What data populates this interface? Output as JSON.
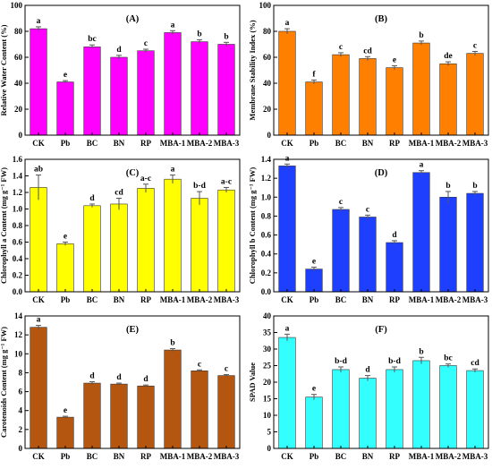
{
  "chart_data": [
    {
      "type": "bar",
      "panel_label": "(A)",
      "color": "#ff00ff",
      "ylabel": "Relative Water Content (%)",
      "ylim": [
        0,
        100
      ],
      "yticks": [
        0,
        20,
        40,
        60,
        80,
        100
      ],
      "categories": [
        "CK",
        "Pb",
        "BC",
        "BN",
        "RP",
        "MBA-1",
        "MBA-2",
        "MBA-3"
      ],
      "values": [
        82,
        41,
        68,
        60,
        65,
        79,
        72,
        70
      ],
      "errors": [
        1.5,
        1.0,
        1.5,
        1.5,
        1.2,
        1.5,
        1.5,
        1.5
      ],
      "significance": [
        "a",
        "e",
        "bc",
        "d",
        "c",
        "a",
        "b",
        "b"
      ]
    },
    {
      "type": "bar",
      "panel_label": "(B)",
      "color": "#ff8000",
      "ylabel": "Membrane Stability Index (%)",
      "ylim": [
        0,
        100
      ],
      "yticks": [
        0,
        20,
        40,
        60,
        80,
        100
      ],
      "categories": [
        "CK",
        "Pb",
        "BC",
        "BN",
        "RP",
        "MBA-1",
        "MBA-2",
        "MBA-3"
      ],
      "values": [
        80,
        41,
        62,
        59,
        52,
        71,
        55,
        63
      ],
      "errors": [
        2.0,
        1.5,
        1.5,
        1.5,
        1.5,
        1.5,
        1.5,
        1.5
      ],
      "significance": [
        "a",
        "f",
        "c",
        "cd",
        "e",
        "b",
        "de",
        "c"
      ]
    },
    {
      "type": "bar",
      "panel_label": "(C)",
      "color": "#ffff00",
      "ylabel": "Chlorophyll a Content (mg g⁻¹ FW)",
      "ylim": [
        0,
        1.6
      ],
      "yticks": [
        0,
        0.2,
        0.4,
        0.6,
        0.8,
        1.0,
        1.2,
        1.4,
        1.6
      ],
      "tick_labels": [
        "0.0",
        "0.2",
        "0.4",
        "0.6",
        "0.8",
        "1.0",
        "1.2",
        "1.4",
        "1.6"
      ],
      "categories": [
        "CK",
        "Pb",
        "BC",
        "BN",
        "RP",
        "MBA-1",
        "MBA-2",
        "MBA-3"
      ],
      "values": [
        1.26,
        0.58,
        1.04,
        1.06,
        1.25,
        1.36,
        1.13,
        1.23
      ],
      "errors": [
        0.15,
        0.02,
        0.02,
        0.07,
        0.05,
        0.05,
        0.08,
        0.03
      ],
      "significance": [
        "ab",
        "e",
        "d",
        "cd",
        "a-c",
        "a",
        "b-d",
        "a-c"
      ]
    },
    {
      "type": "bar",
      "panel_label": "(D)",
      "color": "#1f3fff",
      "ylabel": "Chlorophyll b Content (mg g⁻¹ FW)",
      "ylim": [
        0,
        1.4
      ],
      "yticks": [
        0,
        0.2,
        0.4,
        0.6,
        0.8,
        1.0,
        1.2,
        1.4
      ],
      "tick_labels": [
        "0.0",
        "0.2",
        "0.4",
        "0.6",
        "0.8",
        "1.0",
        "1.2",
        "1.4"
      ],
      "categories": [
        "CK",
        "Pb",
        "BC",
        "BN",
        "RP",
        "MBA-1",
        "MBA-2",
        "MBA-3"
      ],
      "values": [
        1.33,
        0.24,
        0.87,
        0.79,
        0.52,
        1.26,
        1.0,
        1.04
      ],
      "errors": [
        0.02,
        0.02,
        0.02,
        0.02,
        0.02,
        0.02,
        0.06,
        0.02
      ],
      "significance": [
        "a",
        "e",
        "c",
        "c",
        "d",
        "a",
        "b",
        "b"
      ]
    },
    {
      "type": "bar",
      "panel_label": "(E)",
      "color": "#b4560f",
      "ylabel": "Carotenoids Content (mg g⁻¹ FW)",
      "ylim": [
        0,
        14
      ],
      "yticks": [
        0,
        2,
        4,
        6,
        8,
        10,
        12,
        14
      ],
      "categories": [
        "CK",
        "Pb",
        "BC",
        "BN",
        "RP",
        "MBA-1",
        "MBA-2",
        "MBA-3"
      ],
      "values": [
        12.8,
        3.3,
        6.9,
        6.8,
        6.6,
        10.4,
        8.2,
        7.7
      ],
      "errors": [
        0.2,
        0.1,
        0.15,
        0.1,
        0.1,
        0.15,
        0.1,
        0.1
      ],
      "significance": [
        "a",
        "e",
        "d",
        "d",
        "d",
        "b",
        "c",
        "c"
      ]
    },
    {
      "type": "bar",
      "panel_label": "(F)",
      "color": "#33ffff",
      "ylabel": "SPAD Value",
      "ylim": [
        0,
        40
      ],
      "yticks": [
        0,
        5,
        10,
        15,
        20,
        25,
        30,
        35,
        40
      ],
      "categories": [
        "CK",
        "Pb",
        "BC",
        "BN",
        "RP",
        "MBA-1",
        "MBA-2",
        "MBA-3"
      ],
      "values": [
        33.5,
        15.5,
        23.8,
        21.2,
        23.8,
        26.5,
        25.0,
        23.5
      ],
      "errors": [
        1.0,
        0.8,
        0.8,
        0.8,
        0.8,
        1.0,
        0.5,
        0.5
      ],
      "significance": [
        "a",
        "e",
        "b-d",
        "d",
        "b-d",
        "b",
        "bc",
        "cd"
      ]
    }
  ]
}
